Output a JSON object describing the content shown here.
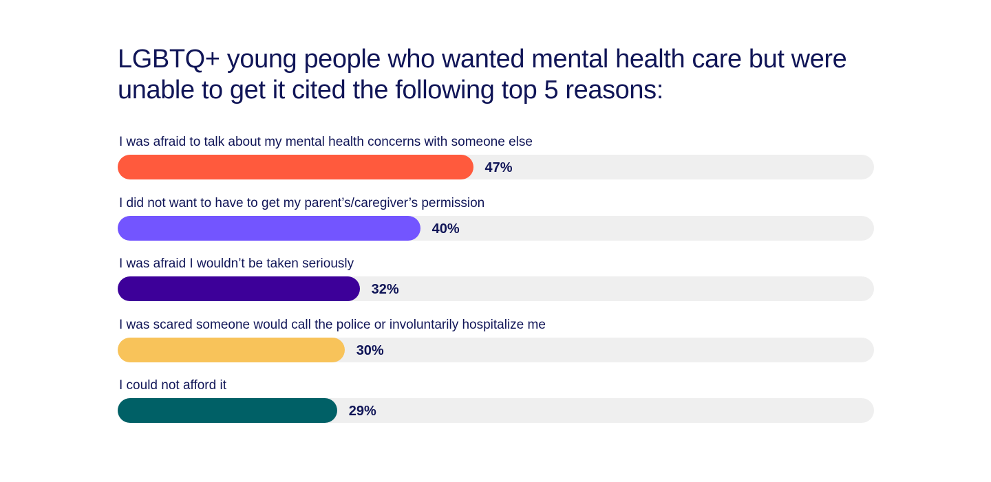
{
  "chart_data": {
    "type": "bar",
    "orientation": "horizontal",
    "title": "LGBTQ+ young people who wanted mental health care but were unable to get it cited the following top 5 reasons:",
    "xlim": [
      0,
      100
    ],
    "categories": [
      "I was afraid to talk about my mental health concerns with someone else",
      "I did not want to have to get my parent’s/caregiver’s permission",
      "I was afraid I wouldn’t be taken seriously",
      "I was scared someone would call the police or involuntarily hospitalize me",
      "I could not afford it"
    ],
    "values": [
      47,
      40,
      32,
      30,
      29
    ],
    "value_labels": [
      "47%",
      "40%",
      "32%",
      "30%",
      "29%"
    ],
    "colors": [
      "#ff5a3d",
      "#7355ff",
      "#3d0099",
      "#f8c35a",
      "#006066"
    ],
    "track_color": "#efefef"
  }
}
